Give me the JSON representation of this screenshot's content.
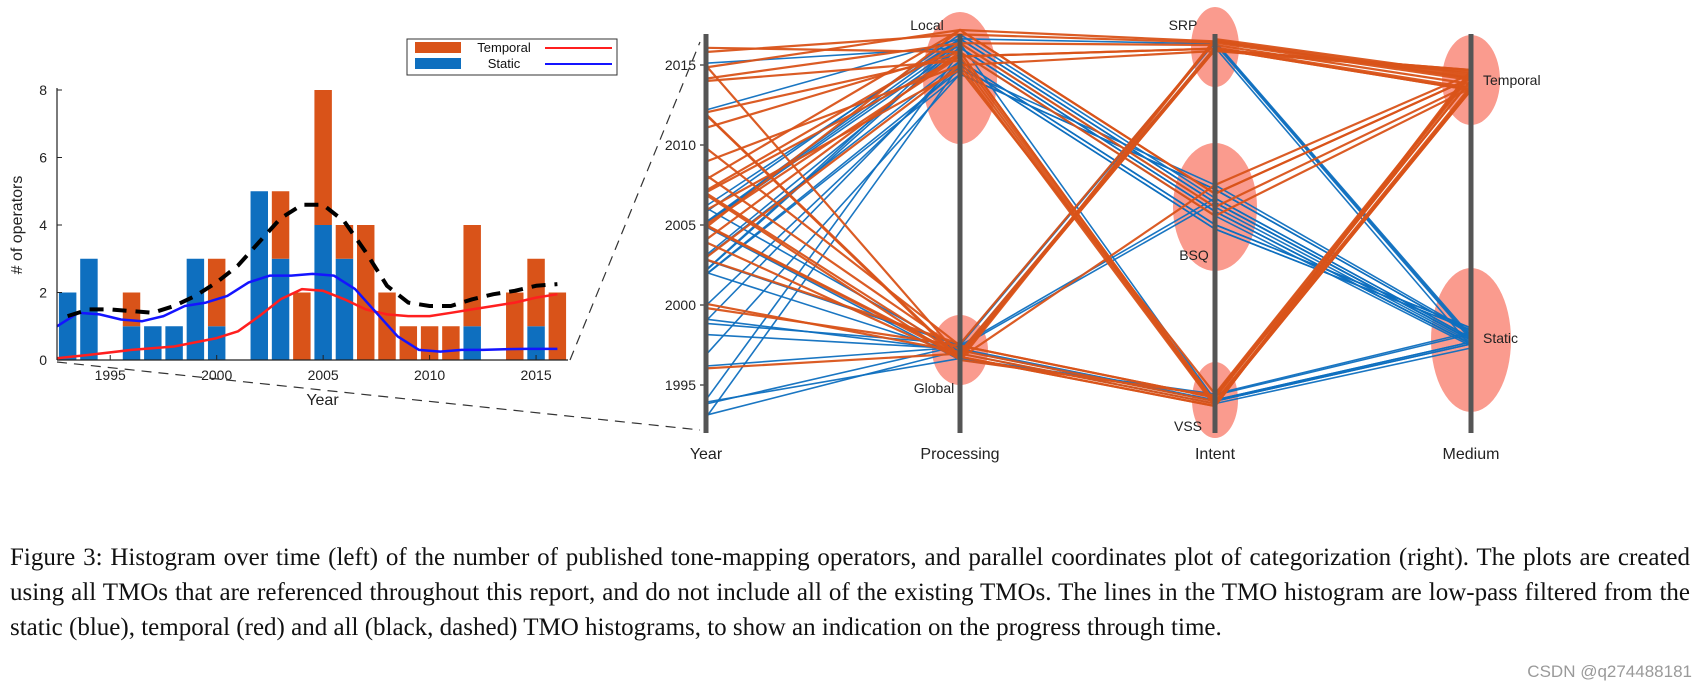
{
  "chart_data": [
    {
      "type": "bar",
      "stacked": true,
      "xlabel": "Year",
      "ylabel": "# of operators",
      "xlim": [
        1992.5,
        2016.5
      ],
      "ylim": [
        0,
        8
      ],
      "yticks": [
        0,
        2,
        4,
        6,
        8
      ],
      "xticks": [
        1995,
        2000,
        2005,
        2010,
        2015
      ],
      "categories": [
        1993,
        1994,
        1995,
        1996,
        1997,
        1998,
        1999,
        2000,
        2001,
        2002,
        2003,
        2004,
        2005,
        2006,
        2007,
        2008,
        2009,
        2010,
        2011,
        2012,
        2013,
        2014,
        2015,
        2016
      ],
      "series": [
        {
          "name": "Static",
          "color": "#0e6fbf",
          "values": [
            2,
            3,
            0,
            1,
            1,
            1,
            3,
            1,
            0,
            5,
            3,
            0,
            4,
            3,
            0,
            0,
            0,
            0,
            0,
            1,
            0,
            0,
            1,
            0
          ]
        },
        {
          "name": "Temporal",
          "color": "#d95319",
          "values": [
            0,
            0,
            0,
            1,
            0,
            0,
            0,
            2,
            0,
            0,
            2,
            2,
            4,
            1,
            4,
            2,
            1,
            1,
            1,
            3,
            0,
            2,
            2,
            2
          ]
        }
      ],
      "lines": [
        {
          "name": "Temporal",
          "color": "#ff1f1f",
          "x": [
            1992.5,
            1994,
            1996,
            1998,
            2000,
            2001,
            2002,
            2003,
            2004,
            2005,
            2006,
            2007,
            2008,
            2009,
            2010,
            2011,
            2012,
            2013,
            2014,
            2015,
            2016
          ],
          "y": [
            0.05,
            0.15,
            0.3,
            0.4,
            0.65,
            0.85,
            1.3,
            1.8,
            2.1,
            2.05,
            1.8,
            1.5,
            1.35,
            1.3,
            1.3,
            1.4,
            1.5,
            1.6,
            1.7,
            1.85,
            1.95
          ]
        },
        {
          "name": "Static",
          "color": "#1414ff",
          "x": [
            1992.5,
            1993.5,
            1994.5,
            1995.5,
            1996.5,
            1997.5,
            1998.5,
            1999.5,
            2000.5,
            2001.5,
            2002.5,
            2003.5,
            2004.5,
            2005.5,
            2006.5,
            2007.5,
            2008.5,
            2009.5,
            2010.5,
            2011.5,
            2012.5,
            2013.5,
            2014.5,
            2015.5,
            2016
          ],
          "y": [
            1.0,
            1.4,
            1.35,
            1.2,
            1.15,
            1.3,
            1.6,
            1.7,
            1.9,
            2.3,
            2.5,
            2.5,
            2.55,
            2.5,
            2.1,
            1.4,
            0.7,
            0.3,
            0.25,
            0.3,
            0.3,
            0.32,
            0.33,
            0.33,
            0.33
          ]
        },
        {
          "name": "All",
          "color": "#000000",
          "dashed": true,
          "x": [
            1993,
            1994,
            1995,
            1996,
            1997,
            1998,
            1999,
            2000,
            2001,
            2002,
            2003,
            2004,
            2005,
            2006,
            2007,
            2008,
            2009,
            2010,
            2011,
            2012,
            2013,
            2014,
            2015,
            2016
          ],
          "y": [
            1.3,
            1.5,
            1.5,
            1.45,
            1.4,
            1.6,
            1.9,
            2.3,
            2.8,
            3.5,
            4.2,
            4.6,
            4.6,
            4.1,
            3.2,
            2.2,
            1.7,
            1.6,
            1.6,
            1.8,
            1.95,
            2.05,
            2.2,
            2.25
          ]
        }
      ],
      "legend": {
        "position": "top-right",
        "entries": [
          "Temporal",
          "Static"
        ]
      }
    },
    {
      "type": "parallel-coordinates",
      "axes": [
        "Year",
        "Processing",
        "Intent",
        "Medium"
      ],
      "year_ticks": [
        1995,
        2000,
        2005,
        2010,
        2015
      ],
      "year_range": [
        1992,
        2016
      ],
      "categories": {
        "Processing": [
          "Local",
          "Global"
        ],
        "Intent": [
          "SRP",
          "BSQ",
          "VSS"
        ],
        "Medium": [
          "Temporal",
          "Static"
        ]
      },
      "colors": {
        "Temporal": "#d95319",
        "Static": "#0e6fbf",
        "cluster": "#f98a7a"
      },
      "operators": [
        {
          "year": 1993,
          "processing": "Global",
          "intent": "VSS",
          "medium": "Static"
        },
        {
          "year": 1993,
          "processing": "Local",
          "intent": "BSQ",
          "medium": "Static"
        },
        {
          "year": 1994,
          "processing": "Global",
          "intent": "SRP",
          "medium": "Static"
        },
        {
          "year": 1994,
          "processing": "Local",
          "intent": "BSQ",
          "medium": "Static"
        },
        {
          "year": 1994,
          "processing": "Global",
          "intent": "VSS",
          "medium": "Static"
        },
        {
          "year": 1996,
          "processing": "Global",
          "intent": "BSQ",
          "medium": "Static"
        },
        {
          "year": 1996,
          "processing": "Global",
          "intent": "VSS",
          "medium": "Temporal"
        },
        {
          "year": 1997,
          "processing": "Local",
          "intent": "BSQ",
          "medium": "Static"
        },
        {
          "year": 1998,
          "processing": "Global",
          "intent": "VSS",
          "medium": "Static"
        },
        {
          "year": 1999,
          "processing": "Local",
          "intent": "BSQ",
          "medium": "Static"
        },
        {
          "year": 1999,
          "processing": "Global",
          "intent": "SRP",
          "medium": "Static"
        },
        {
          "year": 1999,
          "processing": "Global",
          "intent": "VSS",
          "medium": "Static"
        },
        {
          "year": 2000,
          "processing": "Local",
          "intent": "BSQ",
          "medium": "Static"
        },
        {
          "year": 2000,
          "processing": "Global",
          "intent": "VSS",
          "medium": "Temporal"
        },
        {
          "year": 2000,
          "processing": "Global",
          "intent": "SRP",
          "medium": "Temporal"
        },
        {
          "year": 2002,
          "processing": "Local",
          "intent": "BSQ",
          "medium": "Static"
        },
        {
          "year": 2002,
          "processing": "Local",
          "intent": "SRP",
          "medium": "Static"
        },
        {
          "year": 2002,
          "processing": "Global",
          "intent": "VSS",
          "medium": "Static"
        },
        {
          "year": 2002,
          "processing": "Local",
          "intent": "BSQ",
          "medium": "Static"
        },
        {
          "year": 2002,
          "processing": "Local",
          "intent": "VSS",
          "medium": "Static"
        },
        {
          "year": 2003,
          "processing": "Local",
          "intent": "BSQ",
          "medium": "Static"
        },
        {
          "year": 2003,
          "processing": "Global",
          "intent": "SRP",
          "medium": "Temporal"
        },
        {
          "year": 2003,
          "processing": "Local",
          "intent": "BSQ",
          "medium": "Static"
        },
        {
          "year": 2003,
          "processing": "Local",
          "intent": "VSS",
          "medium": "Temporal"
        },
        {
          "year": 2003,
          "processing": "Global",
          "intent": "BSQ",
          "medium": "Static"
        },
        {
          "year": 2004,
          "processing": "Local",
          "intent": "VSS",
          "medium": "Temporal"
        },
        {
          "year": 2004,
          "processing": "Global",
          "intent": "BSQ",
          "medium": "Temporal"
        },
        {
          "year": 2005,
          "processing": "Local",
          "intent": "BSQ",
          "medium": "Static"
        },
        {
          "year": 2005,
          "processing": "Local",
          "intent": "SRP",
          "medium": "Temporal"
        },
        {
          "year": 2005,
          "processing": "Global",
          "intent": "VSS",
          "medium": "Static"
        },
        {
          "year": 2005,
          "processing": "Local",
          "intent": "BSQ",
          "medium": "Static"
        },
        {
          "year": 2005,
          "processing": "Global",
          "intent": "SRP",
          "medium": "Temporal"
        },
        {
          "year": 2005,
          "processing": "Local",
          "intent": "BSQ",
          "medium": "Temporal"
        },
        {
          "year": 2005,
          "processing": "Local",
          "intent": "BSQ",
          "medium": "Static"
        },
        {
          "year": 2005,
          "processing": "Global",
          "intent": "VSS",
          "medium": "Temporal"
        },
        {
          "year": 2006,
          "processing": "Local",
          "intent": "BSQ",
          "medium": "Static"
        },
        {
          "year": 2006,
          "processing": "Global",
          "intent": "SRP",
          "medium": "Static"
        },
        {
          "year": 2006,
          "processing": "Local",
          "intent": "VSS",
          "medium": "Temporal"
        },
        {
          "year": 2006,
          "processing": "Local",
          "intent": "BSQ",
          "medium": "Static"
        },
        {
          "year": 2007,
          "processing": "Local",
          "intent": "SRP",
          "medium": "Temporal"
        },
        {
          "year": 2007,
          "processing": "Global",
          "intent": "VSS",
          "medium": "Temporal"
        },
        {
          "year": 2007,
          "processing": "Local",
          "intent": "BSQ",
          "medium": "Temporal"
        },
        {
          "year": 2007,
          "processing": "Global",
          "intent": "SRP",
          "medium": "Temporal"
        },
        {
          "year": 2008,
          "processing": "Local",
          "intent": "BSQ",
          "medium": "Temporal"
        },
        {
          "year": 2008,
          "processing": "Global",
          "intent": "VSS",
          "medium": "Temporal"
        },
        {
          "year": 2009,
          "processing": "Local",
          "intent": "SRP",
          "medium": "Temporal"
        },
        {
          "year": 2010,
          "processing": "Global",
          "intent": "VSS",
          "medium": "Temporal"
        },
        {
          "year": 2011,
          "processing": "Local",
          "intent": "BSQ",
          "medium": "Temporal"
        },
        {
          "year": 2012,
          "processing": "Global",
          "intent": "SRP",
          "medium": "Temporal"
        },
        {
          "year": 2012,
          "processing": "Local",
          "intent": "BSQ",
          "medium": "Static"
        },
        {
          "year": 2012,
          "processing": "Local",
          "intent": "VSS",
          "medium": "Temporal"
        },
        {
          "year": 2012,
          "processing": "Global",
          "intent": "SRP",
          "medium": "Temporal"
        },
        {
          "year": 2014,
          "processing": "Local",
          "intent": "SRP",
          "medium": "Temporal"
        },
        {
          "year": 2014,
          "processing": "Local",
          "intent": "VSS",
          "medium": "Temporal"
        },
        {
          "year": 2015,
          "processing": "Local",
          "intent": "SRP",
          "medium": "Temporal"
        },
        {
          "year": 2015,
          "processing": "Local",
          "intent": "BSQ",
          "medium": "Static"
        },
        {
          "year": 2015,
          "processing": "Global",
          "intent": "VSS",
          "medium": "Temporal"
        },
        {
          "year": 2016,
          "processing": "Local",
          "intent": "SRP",
          "medium": "Temporal"
        },
        {
          "year": 2016,
          "processing": "Local",
          "intent": "VSS",
          "medium": "Temporal"
        }
      ]
    }
  ],
  "caption": "Figure 3:  Histogram over time (left) of the number of published tone-mapping operators, and parallel coordinates plot of categorization (right). The plots are created using all TMOs that are referenced throughout this report, and do not include all of the existing TMOs. The lines in the TMO histogram are low-pass filtered from the static (blue), temporal (red) and all (black, dashed) TMO histograms, to show an indication on the progress through time.",
  "watermark": "CSDN @q274488181"
}
